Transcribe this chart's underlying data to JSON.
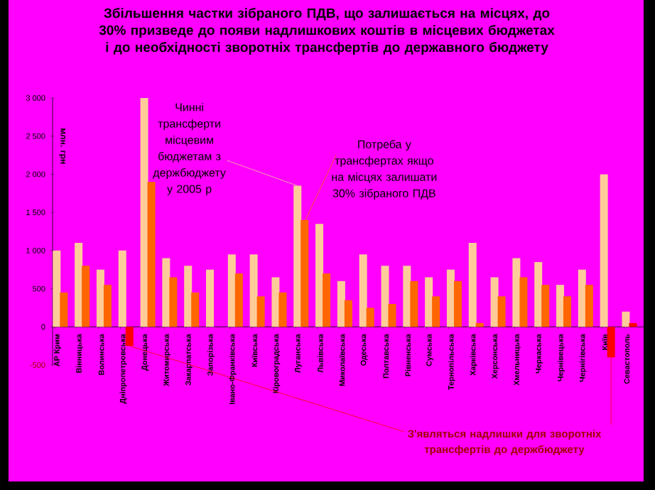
{
  "chart_data": {
    "type": "bar",
    "title": "Збільшення частки зібраного ПДВ, що залишається на місцях, до 30% призведе до появи надлишкових коштів в місцевих бюджетах і до необхідності зворотніх трансфертів до державного бюджету",
    "ylabel": "млн. грн",
    "categories": [
      "АР Крим",
      "Вінницька",
      "Волинська",
      "Дніпропетровська",
      "Донецька",
      "Житомирська",
      "Закарпатська",
      "Запорізька",
      "Івано-Франківська",
      "Київська",
      "Кіровоградська",
      "Луганська",
      "Львівська",
      "Миколаївська",
      "Одеська",
      "Полтавська",
      "Рівненська",
      "Сумська",
      "Тернопільська",
      "Харківська",
      "Херсонська",
      "Хмельницька",
      "Черкаська",
      "Чернівецька",
      "Чернігівська",
      "Київ",
      "Севастополь"
    ],
    "series": [
      {
        "name": "Чинні трансферти місцевим бюджетам з держбюджету у 2005 р",
        "color": "#ffcc99",
        "values": [
          1000,
          1100,
          750,
          1000,
          3000,
          900,
          800,
          750,
          950,
          950,
          650,
          1850,
          1350,
          600,
          950,
          800,
          800,
          650,
          750,
          1100,
          650,
          900,
          850,
          550,
          750,
          2000,
          200
        ]
      },
      {
        "name": "Потреба у трансфертах якщо на місцях залишати 30% зібраного ПДВ",
        "color": "#ff6600",
        "values": [
          450,
          800,
          550,
          -250,
          1900,
          650,
          450,
          null,
          700,
          400,
          450,
          1400,
          700,
          350,
          250,
          300,
          600,
          400,
          600,
          50,
          400,
          650,
          550,
          400,
          550,
          -400,
          50
        ],
        "colors": [
          "#ff6600",
          "#ff6600",
          "#ff6600",
          "#ff0000",
          "#ff6600",
          "#ff6600",
          "#ff6600",
          "#ff6600",
          "#ff6600",
          "#ff6600",
          "#ff6600",
          "#ff6600",
          "#ff6600",
          "#ff6600",
          "#ff6600",
          "#ff6600",
          "#ff6600",
          "#ff6600",
          "#ff6600",
          "#ff6600",
          "#ff6600",
          "#ff6600",
          "#ff6600",
          "#ff6600",
          "#ff6600",
          "#ff0000",
          "#ff0000"
        ]
      }
    ],
    "ylim": [
      -500,
      3000
    ],
    "yticks": [
      {
        "value": -500,
        "label": "-500"
      },
      {
        "value": 0,
        "label": "0"
      },
      {
        "value": 500,
        "label": "500"
      },
      {
        "value": 1000,
        "label": "1 000"
      },
      {
        "value": 1500,
        "label": "1 500"
      },
      {
        "value": 2000,
        "label": "2 000"
      },
      {
        "value": 2500,
        "label": "2 500"
      },
      {
        "value": 3000,
        "label": "3 000"
      }
    ],
    "annotations": [
      {
        "text": "З'являться надлишки для зворотніх трансфертів до держбюджету",
        "x": "Київ",
        "y": -400
      }
    ]
  }
}
